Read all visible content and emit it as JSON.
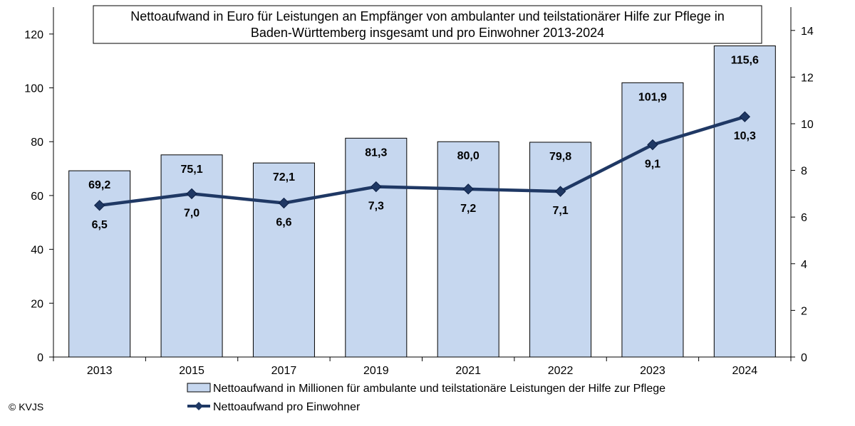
{
  "chart_data": {
    "type": "bar+line",
    "title_lines": [
      "Nettoaufwand in Euro für Leistungen an Empfänger von ambulanter und teilstationärer Hilfe zur Pflege in",
      "Baden-Württemberg insgesamt und pro Einwohner 2013-2024"
    ],
    "categories": [
      "2013",
      "2015",
      "2017",
      "2019",
      "2021",
      "2022",
      "2023",
      "2024"
    ],
    "series": [
      {
        "name": "Nettoaufwand in Millionen für ambulante und teilstationäre Leistungen der Hilfe zur Pflege",
        "type": "bar",
        "axis": "left",
        "color": "#c6d7ef",
        "values": [
          69.2,
          75.1,
          72.1,
          81.3,
          80.0,
          79.8,
          101.9,
          115.6
        ],
        "labels": [
          "69,2",
          "75,1",
          "72,1",
          "81,3",
          "80,0",
          "79,8",
          "101,9",
          "115,6"
        ]
      },
      {
        "name": "Nettoaufwand pro Einwohner",
        "type": "line",
        "axis": "right",
        "color": "#1f3864",
        "values": [
          6.5,
          7.0,
          6.6,
          7.3,
          7.2,
          7.1,
          9.1,
          10.3
        ],
        "labels": [
          "6,5",
          "7,0",
          "6,6",
          "7,3",
          "7,2",
          "7,1",
          "9,1",
          "10,3"
        ]
      }
    ],
    "y_left": {
      "min": 0,
      "max": 130,
      "ticks": [
        "0",
        "20",
        "40",
        "60",
        "80",
        "100",
        "120"
      ],
      "tick_values": [
        0,
        20,
        40,
        60,
        80,
        100,
        120
      ]
    },
    "y_right": {
      "min": 0,
      "max": 15,
      "ticks": [
        "0",
        "2",
        "4",
        "6",
        "8",
        "10",
        "12",
        "14"
      ],
      "tick_values": [
        0,
        2,
        4,
        6,
        8,
        10,
        12,
        14
      ]
    },
    "grid": false,
    "legend_position": "bottom"
  },
  "footer": {
    "copyright": "© KVJS"
  }
}
